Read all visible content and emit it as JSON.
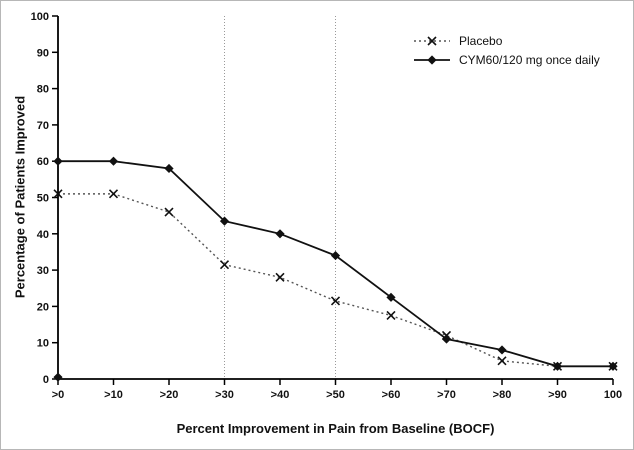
{
  "chart_data": {
    "type": "line",
    "title": "",
    "xlabel": "Percent Improvement in Pain from Baseline (BOCF)",
    "ylabel": "Percentage of Patients Improved",
    "categories": [
      ">0",
      ">10",
      ">20",
      ">30",
      ">40",
      ">50",
      ">60",
      ">70",
      ">80",
      ">90",
      "100"
    ],
    "ylim": [
      0,
      100
    ],
    "ytick_step": 10,
    "grid": false,
    "reference_lines": {
      "x_categories": [
        ">30",
        ">50"
      ],
      "style": "dotted",
      "color": "#999999"
    },
    "series": [
      {
        "name": "Placebo",
        "marker": "x",
        "line": "dotted",
        "line_color": "#555555",
        "marker_color": "#111111",
        "values": [
          51,
          51,
          46,
          31.5,
          28,
          21.5,
          17.5,
          12,
          5,
          3.5,
          3.5
        ]
      },
      {
        "name": "CYM60/120 mg once daily",
        "marker": "diamond",
        "line": "solid",
        "line_color": "#111111",
        "marker_color": "#111111",
        "values": [
          60,
          60,
          58,
          43.5,
          40,
          34,
          22.5,
          11,
          8,
          3.5,
          3.5
        ]
      }
    ],
    "stray_point": {
      "category": ">0",
      "value": 0.5,
      "marker": "diamond"
    },
    "legend": {
      "position": "top-right"
    },
    "axis_color": "#000000"
  }
}
